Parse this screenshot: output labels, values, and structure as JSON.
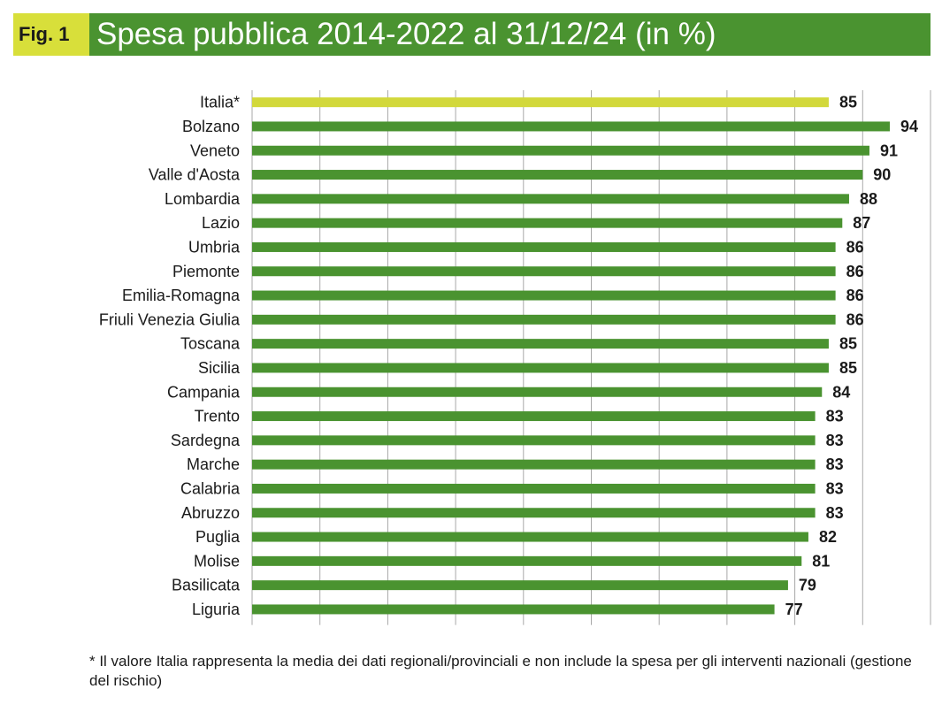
{
  "header": {
    "fig_label": "Fig. 1",
    "title": "Spesa pubblica 2014-2022 al 31/12/24 (in %)"
  },
  "colors": {
    "highlight": "#d2d83b",
    "bar": "#4a9330",
    "title_bg": "#4a9330",
    "fig_bg": "#d8df3a"
  },
  "chart_data": {
    "type": "bar",
    "orientation": "horizontal",
    "title": "Spesa pubblica 2014-2022 al 31/12/24 (in %)",
    "xlabel": "",
    "ylabel": "",
    "xlim": [
      0,
      100
    ],
    "grid": true,
    "categories": [
      "Italia*",
      "Bolzano",
      "Veneto",
      "Valle d'Aosta",
      "Lombardia",
      "Lazio",
      "Umbria",
      "Piemonte",
      "Emilia-Romagna",
      "Friuli Venezia Giulia",
      "Toscana",
      "Sicilia",
      "Campania",
      "Trento",
      "Sardegna",
      "Marche",
      "Calabria",
      "Abruzzo",
      "Puglia",
      "Molise",
      "Basilicata",
      "Liguria"
    ],
    "values": [
      85,
      94,
      91,
      90,
      88,
      87,
      86,
      86,
      86,
      86,
      85,
      85,
      84,
      83,
      83,
      83,
      83,
      83,
      82,
      81,
      79,
      77
    ],
    "highlight_category": "Italia*"
  },
  "footnote": "* Il valore Italia rappresenta la media dei dati regionali/provinciali e non include la spesa per gli interventi nazionali (gestione del rischio)"
}
